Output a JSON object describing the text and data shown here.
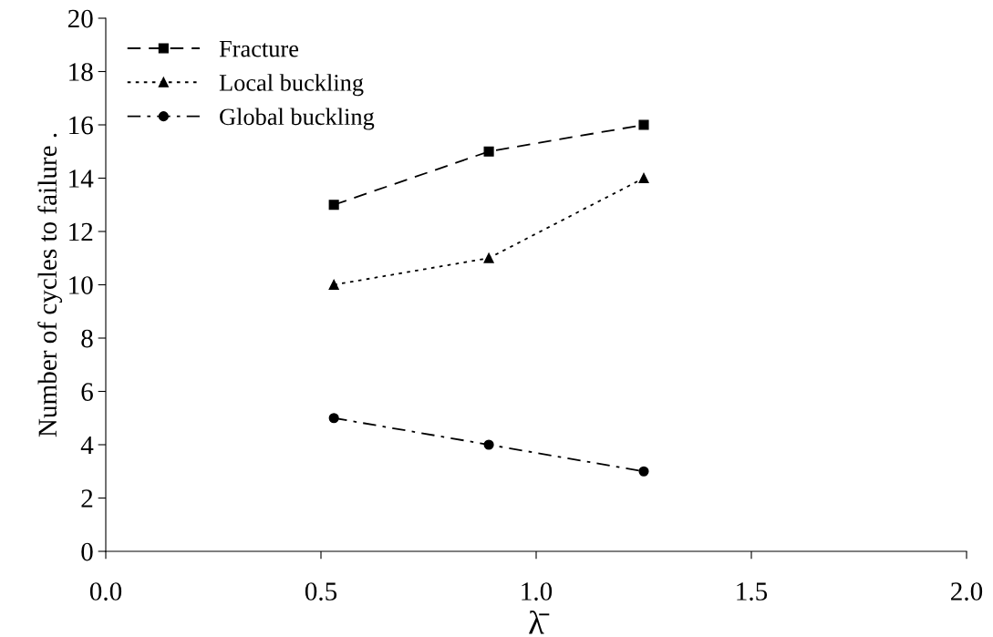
{
  "chart_data": {
    "type": "line",
    "xlabel": "λ̄",
    "ylabel": "Number of cycles to failure .",
    "x": [
      0.53,
      0.89,
      1.25
    ],
    "series": [
      {
        "name": "Fracture",
        "color": "#000000",
        "values": [
          13,
          15,
          16
        ],
        "marker": "square",
        "line_style": "dashed"
      },
      {
        "name": "Local buckling",
        "color": "#000000",
        "values": [
          10,
          11,
          14
        ],
        "marker": "triangle",
        "line_style": "dotted"
      },
      {
        "name": "Global buckling",
        "color": "#000000",
        "values": [
          5,
          4,
          3
        ],
        "marker": "circle",
        "line_style": "dashdot"
      }
    ],
    "xlim": [
      0,
      2
    ],
    "xticks": [
      {
        "value": 0,
        "label": "0.0"
      },
      {
        "value": 0.5,
        "label": "0.5"
      },
      {
        "value": 1,
        "label": "1.0"
      },
      {
        "value": 1.5,
        "label": "1.5"
      },
      {
        "value": 2,
        "label": "2.0"
      }
    ],
    "ylim": [
      0,
      20
    ],
    "yticks": [
      0,
      2,
      4,
      6,
      8,
      10,
      12,
      14,
      16,
      18,
      20
    ],
    "grid": false,
    "legend": "top left"
  }
}
